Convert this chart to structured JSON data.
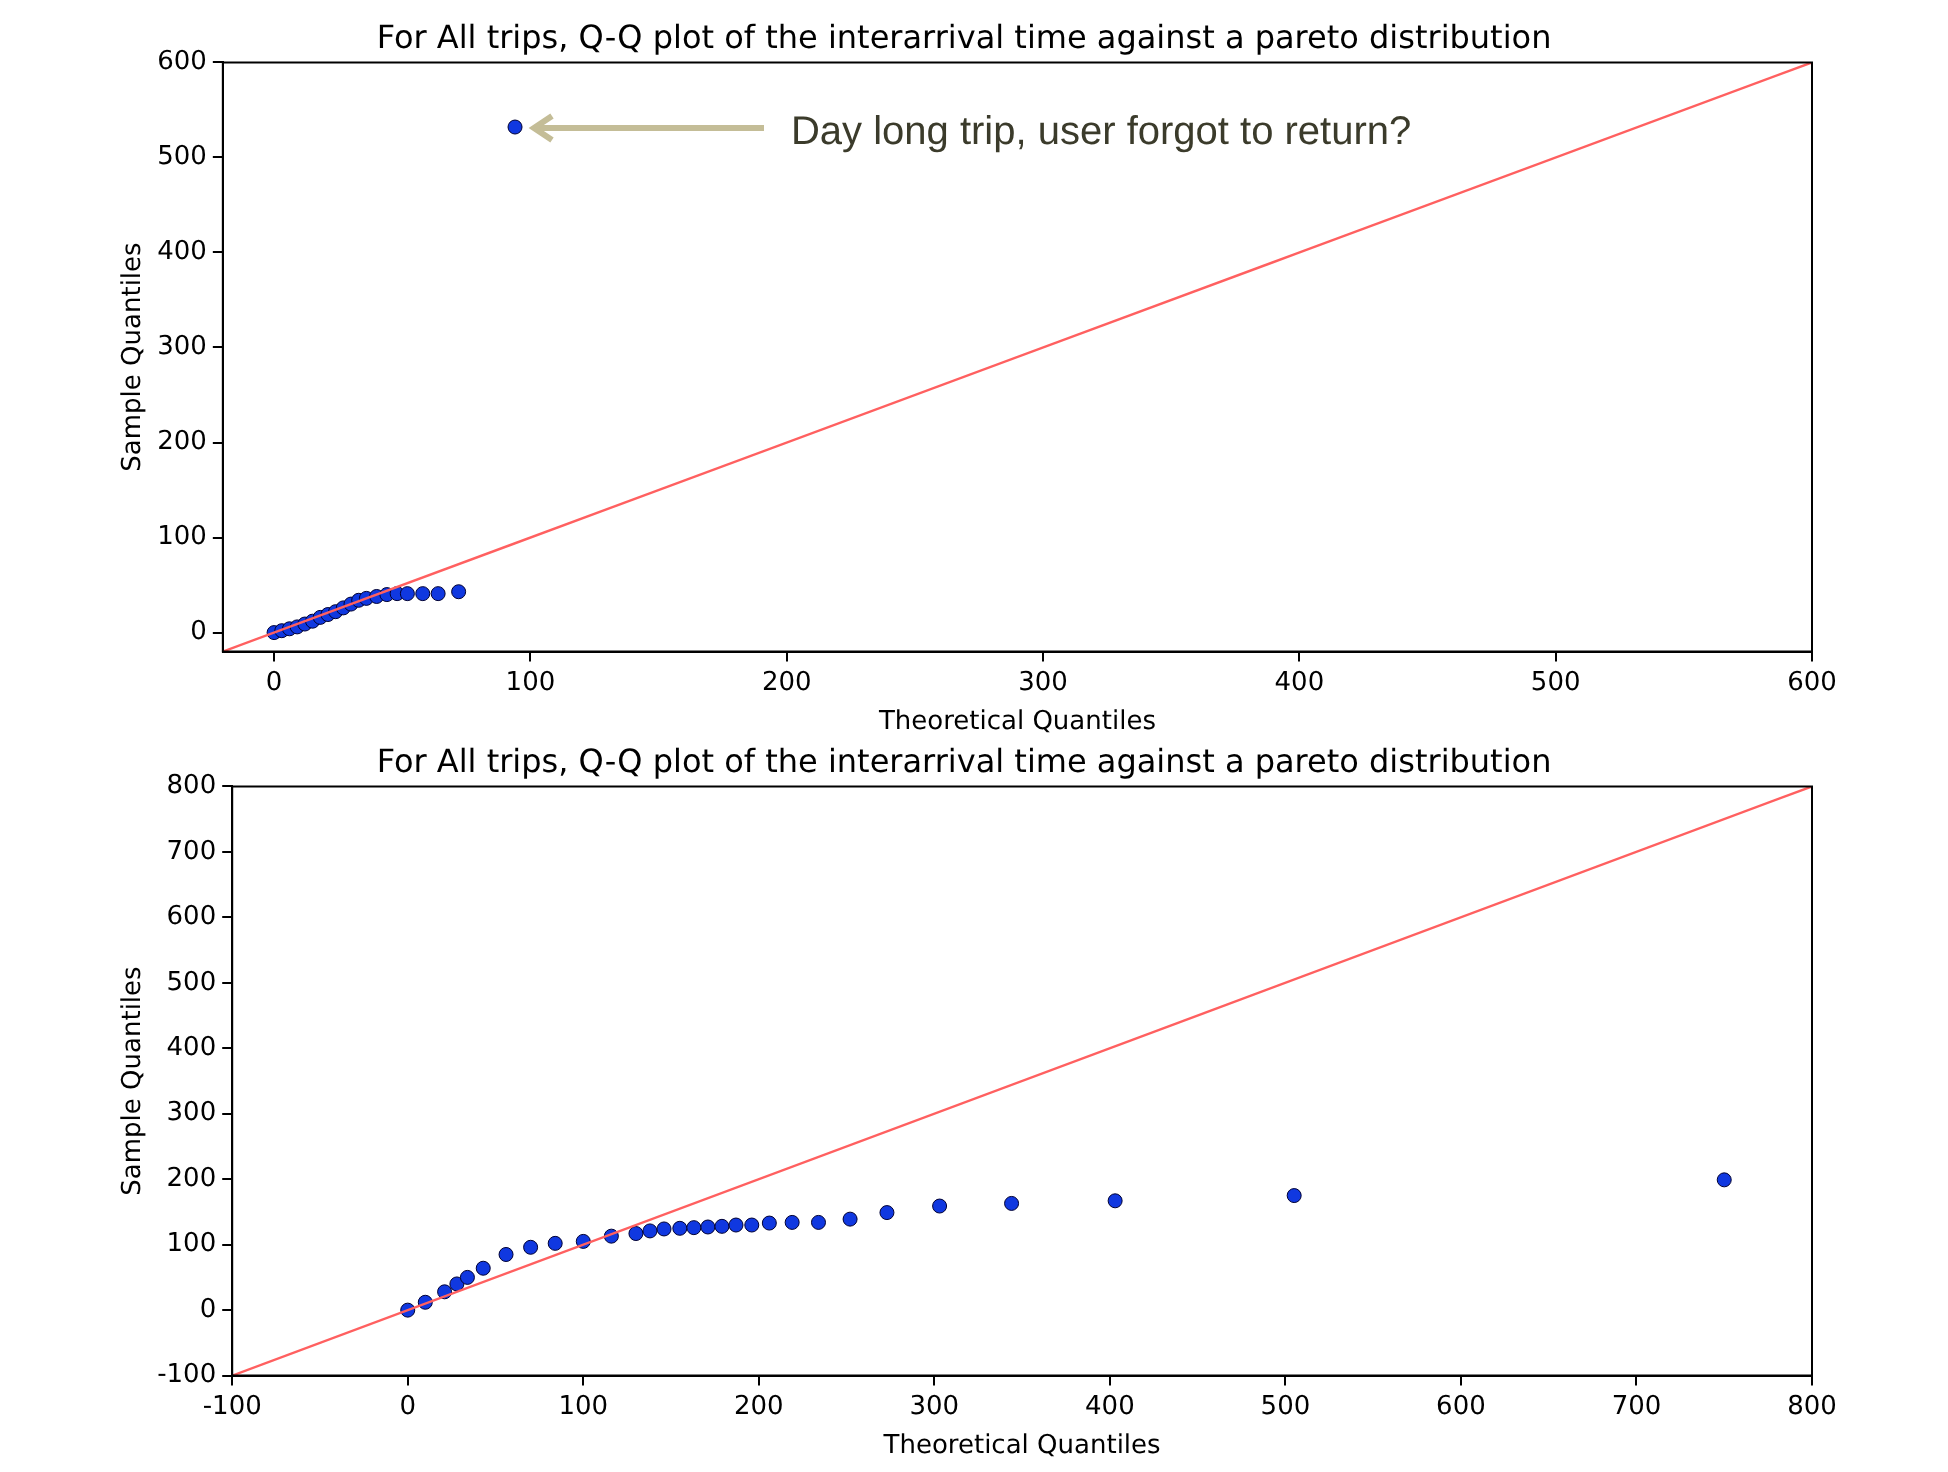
{
  "chart_data": [
    {
      "type": "scatter",
      "title": "For All trips, Q-Q plot of the interarrival time against a pareto distribution",
      "xlabel": "Theoretical Quantiles",
      "ylabel": "Sample Quantiles",
      "xlim": [
        -20,
        600
      ],
      "ylim": [
        -20,
        600
      ],
      "xticks": [
        0,
        100,
        200,
        300,
        400,
        500,
        600
      ],
      "yticks": [
        0,
        100,
        200,
        300,
        400,
        500,
        600
      ],
      "grid": false,
      "legend": false,
      "annotations": [
        "Day long trip, user forgot to return?"
      ],
      "series": [
        {
          "marker": "circle",
          "color": "#1038e0",
          "x": [
            0,
            3,
            6,
            9,
            12,
            15,
            18,
            21,
            24,
            27,
            30,
            33,
            36,
            40,
            44,
            48,
            52,
            58,
            64,
            72,
            94
          ],
          "values": [
            0,
            2,
            4,
            6,
            9,
            12,
            16,
            19,
            22,
            26,
            30,
            34,
            36,
            38,
            40,
            41,
            41,
            41,
            41,
            43,
            532
          ]
        },
        {
          "type": "line",
          "color": "#ff6060",
          "x": [
            -20,
            600
          ],
          "values": [
            -20,
            600
          ]
        }
      ]
    },
    {
      "type": "scatter",
      "title": "For All trips, Q-Q plot of the interarrival time against a pareto distribution",
      "xlabel": "Theoretical Quantiles",
      "ylabel": "Sample Quantiles",
      "xlim": [
        -100,
        800
      ],
      "ylim": [
        -100,
        800
      ],
      "xticks": [
        -100,
        0,
        100,
        200,
        300,
        400,
        500,
        600,
        700,
        800
      ],
      "yticks": [
        -100,
        0,
        100,
        200,
        300,
        400,
        500,
        600,
        700,
        800
      ],
      "grid": false,
      "legend": false,
      "series": [
        {
          "marker": "circle",
          "color": "#1038e0",
          "x": [
            0,
            10,
            21,
            28,
            34,
            43,
            56,
            70,
            84,
            100,
            116,
            130,
            138,
            146,
            155,
            163,
            171,
            179,
            187,
            196,
            206,
            219,
            234,
            252,
            273,
            303,
            344,
            403,
            505,
            750
          ],
          "values": [
            0,
            12,
            28,
            40,
            50,
            64,
            85,
            96,
            102,
            105,
            113,
            117,
            121,
            124,
            125,
            126,
            127,
            128,
            130,
            130,
            133,
            134,
            134,
            139,
            149,
            159,
            163,
            167,
            175,
            199
          ]
        },
        {
          "type": "line",
          "color": "#ff6060",
          "x": [
            -100,
            800
          ],
          "values": [
            -100,
            800
          ]
        }
      ]
    }
  ]
}
